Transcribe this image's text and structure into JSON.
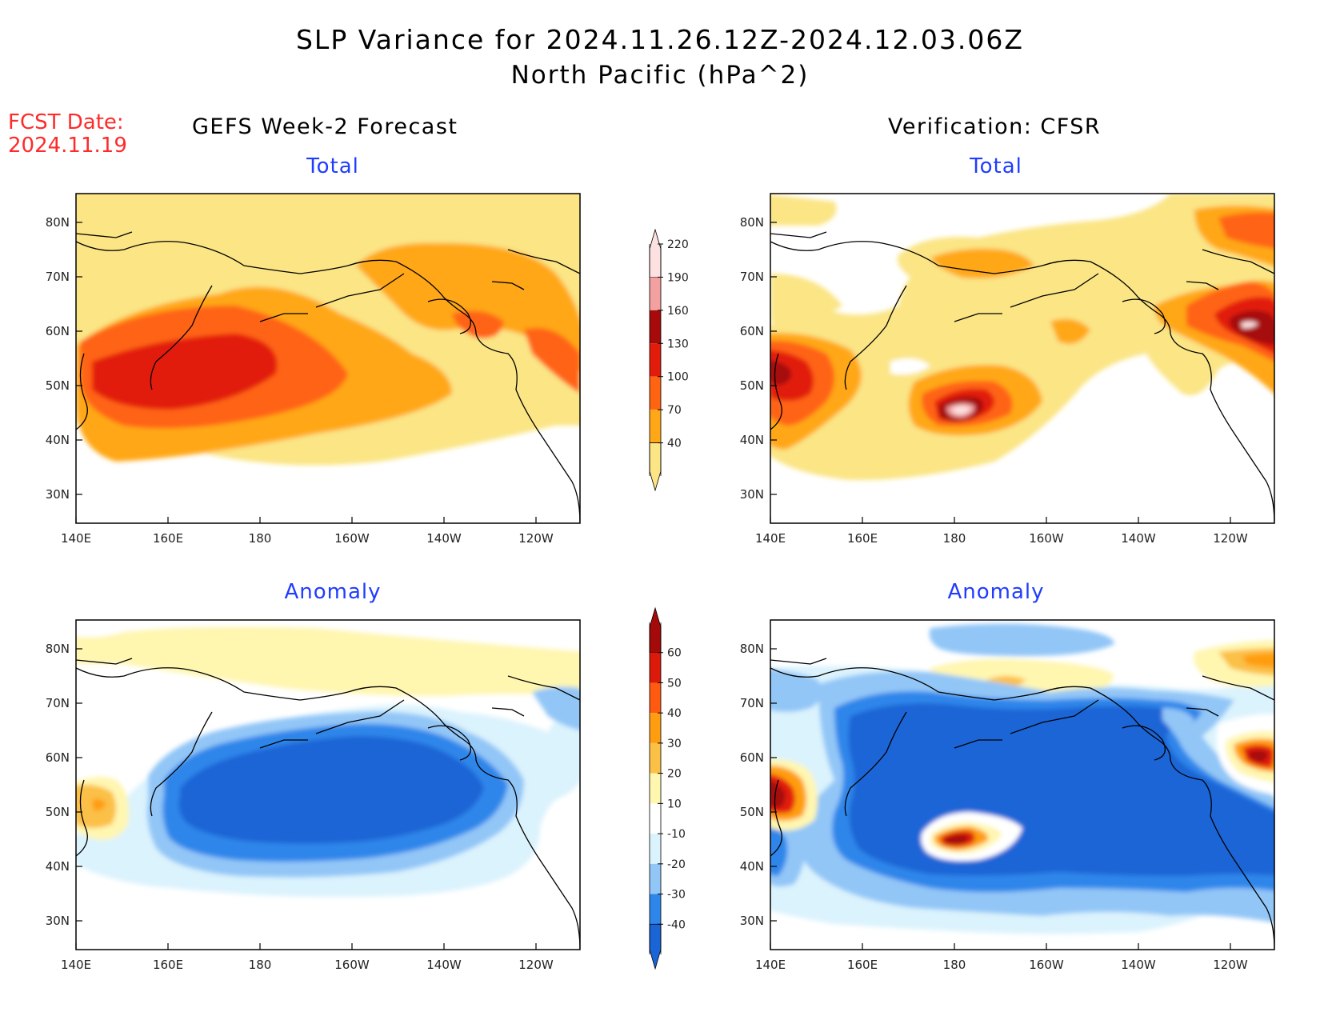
{
  "header": {
    "title": "SLP Variance for 2024.11.26.12Z-2024.12.03.06Z",
    "subtitle": "North Pacific (hPa^2)",
    "fcst_label": "FCST Date:",
    "fcst_date": "2024.11.19",
    "left_column": "GEFS Week-2 Forecast",
    "right_column": "Verification: CFSR"
  },
  "panels": {
    "top_left": {
      "title": "Total"
    },
    "top_right": {
      "title": "Total"
    },
    "bottom_left": {
      "title": "Anomaly"
    },
    "bottom_right": {
      "title": "Anomaly"
    }
  },
  "axes": {
    "lon_ticks": [
      "140E",
      "160E",
      "180",
      "160W",
      "140W",
      "120W"
    ],
    "lat_ticks": [
      "80N",
      "70N",
      "60N",
      "50N",
      "40N",
      "30N"
    ]
  },
  "colorbars": {
    "total": {
      "levels": [
        "40",
        "70",
        "100",
        "130",
        "160",
        "190",
        "220"
      ],
      "colors": [
        "#fbe585",
        "#ffa716",
        "#ff6412",
        "#e21c0a",
        "#a60a0a",
        "#f3a0a0",
        "#fde0e0"
      ]
    },
    "anomaly": {
      "levels": [
        "-40",
        "-30",
        "-20",
        "-10",
        "10",
        "20",
        "30",
        "40",
        "50",
        "60"
      ],
      "colors": [
        "#1a65d6",
        "#2e86ea",
        "#92c6f7",
        "#dbf3fd",
        "#ffffff",
        "#fff6b0",
        "#fbc046",
        "#ff9d10",
        "#ff5a10",
        "#db1a0a",
        "#a50a0a"
      ]
    }
  }
}
